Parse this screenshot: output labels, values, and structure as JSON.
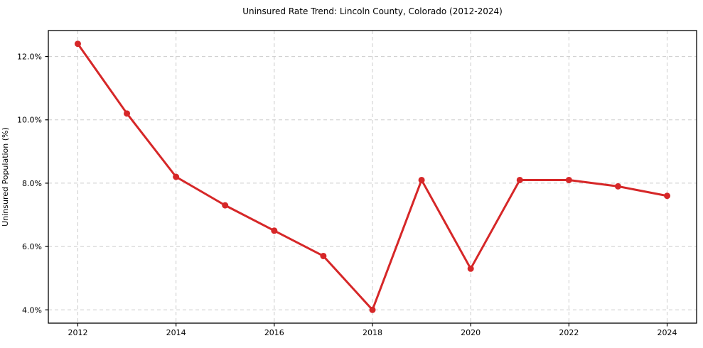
{
  "chart_data": {
    "type": "line",
    "title": "Uninsured Rate Trend: Lincoln County, Colorado (2012-2024)",
    "xlabel": "",
    "ylabel": "Uninsured Population (%)",
    "x": [
      2012,
      2013,
      2014,
      2015,
      2016,
      2017,
      2018,
      2019,
      2020,
      2021,
      2022,
      2023,
      2024
    ],
    "values": [
      12.4,
      10.2,
      8.2,
      7.3,
      6.5,
      5.7,
      4.0,
      8.1,
      5.3,
      8.1,
      8.1,
      7.9,
      7.6
    ],
    "xticks": [
      2012,
      2014,
      2016,
      2018,
      2020,
      2022,
      2024
    ],
    "xtick_labels": [
      "2012",
      "2014",
      "2016",
      "2018",
      "2020",
      "2022",
      "2024"
    ],
    "yticks": [
      4.0,
      6.0,
      8.0,
      10.0,
      12.0
    ],
    "ytick_labels": [
      "4.0%",
      "6.0%",
      "8.0%",
      "10.0%",
      "12.0%"
    ],
    "xlim": [
      2011.4,
      2024.6
    ],
    "ylim": [
      3.58,
      12.82
    ],
    "grid": true,
    "grid_style": "dashed",
    "legend": false,
    "colors": {
      "line": "#d62728",
      "marker": "#d62728",
      "grid": "#cccccc",
      "spine": "#000000",
      "text": "#000000",
      "background": "#ffffff"
    }
  }
}
